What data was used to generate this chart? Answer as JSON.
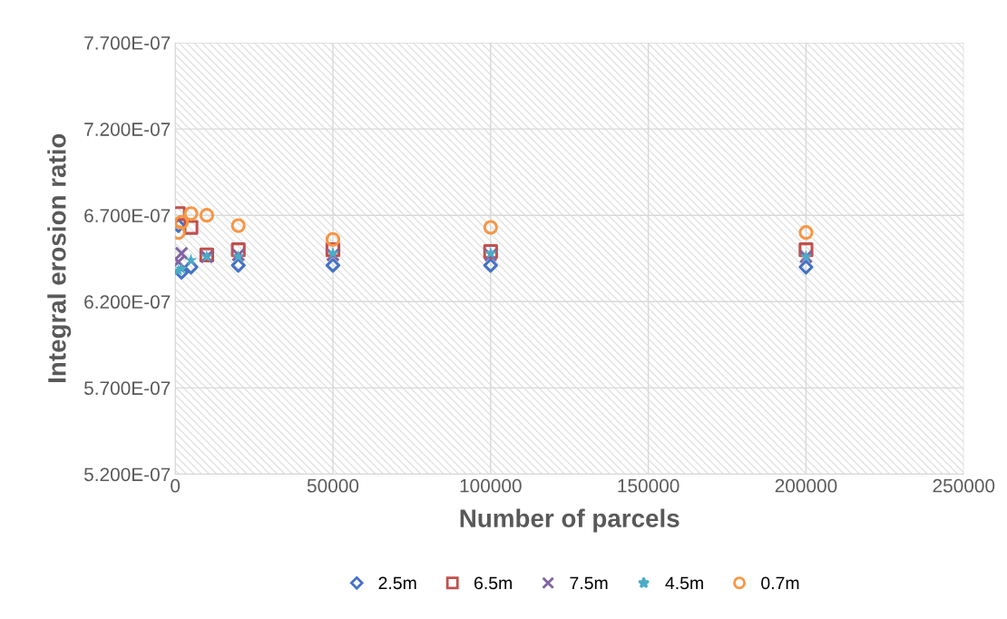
{
  "chart_data": {
    "type": "scatter",
    "xlabel": "Number of parcels",
    "ylabel": "Integral erosion ratio",
    "x": [
      1000,
      2000,
      5000,
      10000,
      20000,
      50000,
      100000,
      200000
    ],
    "series": [
      {
        "name": "2.5m",
        "color": "#4472c4",
        "marker": "diamond",
        "values": [
          6.64e-07,
          6.37e-07,
          6.4e-07,
          null,
          6.41e-07,
          6.41e-07,
          6.41e-07,
          6.4e-07
        ]
      },
      {
        "name": "6.5m",
        "color": "#c0504d",
        "marker": "square",
        "values": [
          6.71e-07,
          null,
          6.63e-07,
          6.47e-07,
          6.5e-07,
          6.5e-07,
          6.49e-07,
          6.5e-07
        ]
      },
      {
        "name": "7.5m",
        "color": "#8064a2",
        "marker": "cross",
        "values": [
          6.43e-07,
          6.48e-07,
          null,
          6.46e-07,
          6.47e-07,
          6.47e-07,
          6.47e-07,
          6.46e-07
        ]
      },
      {
        "name": "4.5m",
        "color": "#4bacc6",
        "marker": "star",
        "values": [
          6.38e-07,
          6.39e-07,
          6.44e-07,
          6.46e-07,
          6.46e-07,
          6.48e-07,
          6.48e-07,
          6.46e-07
        ]
      },
      {
        "name": "0.7m",
        "color": "#f79646",
        "marker": "circle",
        "values": [
          6.6e-07,
          6.66e-07,
          6.71e-07,
          6.7e-07,
          6.64e-07,
          6.56e-07,
          6.63e-07,
          6.6e-07
        ]
      }
    ],
    "xlim": [
      0,
      250000
    ],
    "xticks": [
      0,
      50000,
      100000,
      150000,
      200000,
      250000
    ],
    "ylim": [
      5.2e-07,
      7.7e-07
    ],
    "yticks": [
      {
        "value": 5.2e-07,
        "label": "5.200E-07"
      },
      {
        "value": 5.7e-07,
        "label": "5.700E-07"
      },
      {
        "value": 6.2e-07,
        "label": "6.200E-07"
      },
      {
        "value": 6.7e-07,
        "label": "6.700E-07"
      },
      {
        "value": 7.2e-07,
        "label": "7.200E-07"
      },
      {
        "value": 7.7e-07,
        "label": "7.700E-07"
      }
    ],
    "grid": true,
    "legend": "bottom"
  }
}
